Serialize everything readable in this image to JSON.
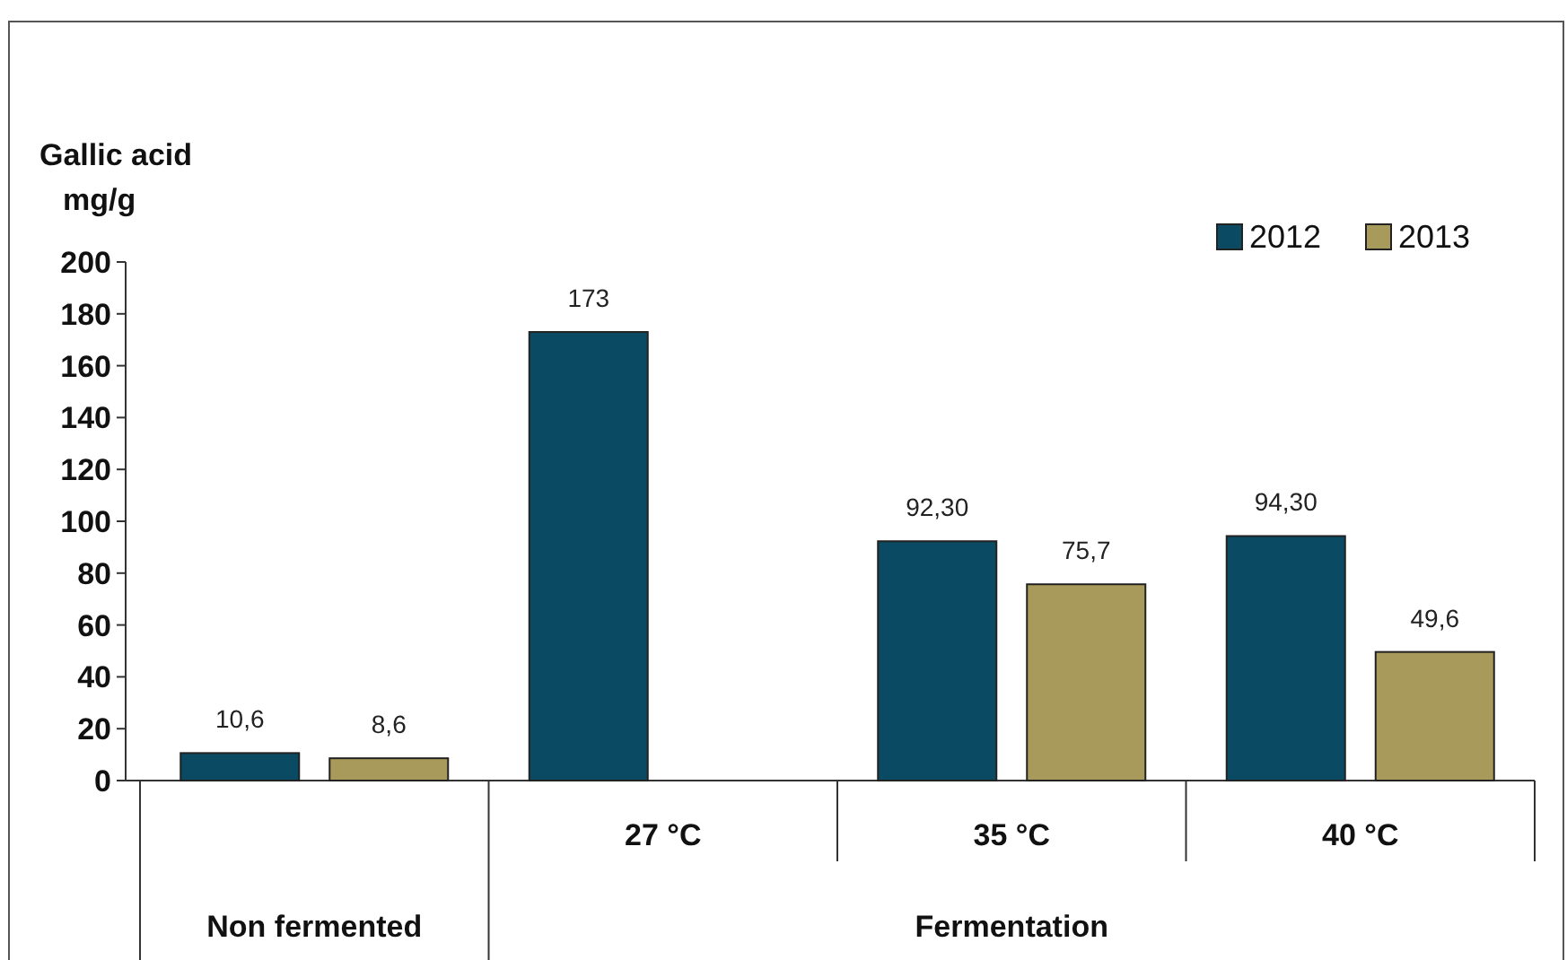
{
  "chart_data": {
    "type": "bar",
    "ylabel": "Gallic acid mg/g",
    "categories": [
      null,
      "27 °C",
      "35 °C",
      "40 °C"
    ],
    "series": [
      {
        "name": "2012",
        "color": "#0b4a63",
        "values": [
          10.6,
          173,
          92.3,
          94.3
        ],
        "value_labels": [
          "10,6",
          "173",
          "92,30",
          "94,30"
        ]
      },
      {
        "name": "2013",
        "color": "#a89a5a",
        "values": [
          8.6,
          null,
          75.7,
          49.6
        ],
        "value_labels": [
          "8,6",
          null,
          "75,7",
          "49,6"
        ]
      }
    ],
    "ylim": [
      0,
      200
    ],
    "yticks": [
      0,
      20,
      40,
      60,
      80,
      100,
      120,
      140,
      160,
      180,
      200
    ],
    "legend": "top right",
    "annotations": [
      "Non fermented",
      "Fermentation"
    ]
  }
}
